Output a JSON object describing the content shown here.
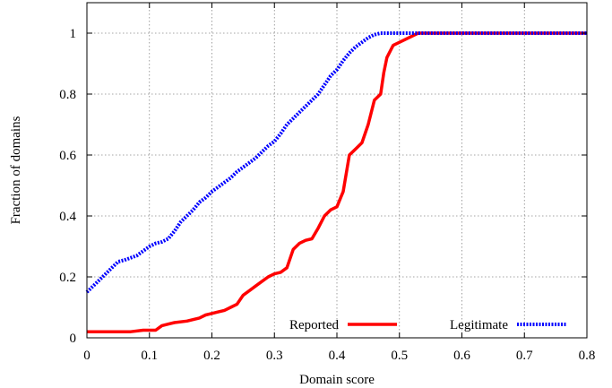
{
  "chart_data": {
    "type": "line",
    "title": "",
    "xlabel": "Domain score",
    "ylabel": "Fraction of domains",
    "xlim": [
      0,
      0.8
    ],
    "ylim": [
      0,
      1.1
    ],
    "xticks": [
      0,
      0.1,
      0.2,
      0.3,
      0.4,
      0.5,
      0.6,
      0.7,
      0.8
    ],
    "yticks": [
      0,
      0.2,
      0.4,
      0.6,
      0.8,
      1
    ],
    "xtick_labels": [
      "0",
      "0.1",
      "0.2",
      "0.3",
      "0.4",
      "0.5",
      "0.6",
      "0.7",
      "0.8"
    ],
    "ytick_labels": [
      "0",
      "0.2",
      "0.4",
      "0.6",
      "0.8",
      "1"
    ],
    "grid": true,
    "legend_position": "bottom-right",
    "series": [
      {
        "name": "Reported",
        "color": "#ff0000",
        "style": "solid",
        "points": [
          [
            0.0,
            0.02
          ],
          [
            0.07,
            0.02
          ],
          [
            0.09,
            0.025
          ],
          [
            0.11,
            0.025
          ],
          [
            0.12,
            0.04
          ],
          [
            0.13,
            0.045
          ],
          [
            0.14,
            0.05
          ],
          [
            0.16,
            0.055
          ],
          [
            0.18,
            0.065
          ],
          [
            0.19,
            0.075
          ],
          [
            0.2,
            0.08
          ],
          [
            0.21,
            0.085
          ],
          [
            0.22,
            0.09
          ],
          [
            0.23,
            0.1
          ],
          [
            0.24,
            0.11
          ],
          [
            0.25,
            0.14
          ],
          [
            0.26,
            0.155
          ],
          [
            0.27,
            0.17
          ],
          [
            0.28,
            0.185
          ],
          [
            0.29,
            0.2
          ],
          [
            0.3,
            0.21
          ],
          [
            0.31,
            0.215
          ],
          [
            0.32,
            0.23
          ],
          [
            0.33,
            0.29
          ],
          [
            0.34,
            0.31
          ],
          [
            0.35,
            0.32
          ],
          [
            0.36,
            0.325
          ],
          [
            0.37,
            0.36
          ],
          [
            0.38,
            0.4
          ],
          [
            0.39,
            0.42
          ],
          [
            0.4,
            0.43
          ],
          [
            0.41,
            0.48
          ],
          [
            0.42,
            0.6
          ],
          [
            0.43,
            0.62
          ],
          [
            0.44,
            0.64
          ],
          [
            0.45,
            0.7
          ],
          [
            0.46,
            0.78
          ],
          [
            0.47,
            0.8
          ],
          [
            0.475,
            0.87
          ],
          [
            0.48,
            0.92
          ],
          [
            0.49,
            0.96
          ],
          [
            0.5,
            0.97
          ],
          [
            0.51,
            0.98
          ],
          [
            0.52,
            0.99
          ],
          [
            0.53,
            1.0
          ],
          [
            0.8,
            1.0
          ]
        ]
      },
      {
        "name": "Legitimate",
        "color": "#0000ff",
        "style": "dotted",
        "points": [
          [
            0.0,
            0.15
          ],
          [
            0.02,
            0.19
          ],
          [
            0.04,
            0.23
          ],
          [
            0.05,
            0.25
          ],
          [
            0.06,
            0.255
          ],
          [
            0.08,
            0.27
          ],
          [
            0.09,
            0.285
          ],
          [
            0.1,
            0.3
          ],
          [
            0.11,
            0.31
          ],
          [
            0.12,
            0.315
          ],
          [
            0.13,
            0.325
          ],
          [
            0.14,
            0.35
          ],
          [
            0.15,
            0.38
          ],
          [
            0.16,
            0.4
          ],
          [
            0.17,
            0.42
          ],
          [
            0.18,
            0.445
          ],
          [
            0.19,
            0.46
          ],
          [
            0.2,
            0.48
          ],
          [
            0.21,
            0.495
          ],
          [
            0.22,
            0.51
          ],
          [
            0.23,
            0.525
          ],
          [
            0.24,
            0.545
          ],
          [
            0.25,
            0.56
          ],
          [
            0.26,
            0.575
          ],
          [
            0.27,
            0.59
          ],
          [
            0.28,
            0.61
          ],
          [
            0.29,
            0.63
          ],
          [
            0.3,
            0.645
          ],
          [
            0.31,
            0.67
          ],
          [
            0.32,
            0.7
          ],
          [
            0.33,
            0.72
          ],
          [
            0.34,
            0.74
          ],
          [
            0.35,
            0.76
          ],
          [
            0.36,
            0.78
          ],
          [
            0.37,
            0.8
          ],
          [
            0.38,
            0.83
          ],
          [
            0.39,
            0.86
          ],
          [
            0.4,
            0.88
          ],
          [
            0.41,
            0.91
          ],
          [
            0.42,
            0.935
          ],
          [
            0.43,
            0.955
          ],
          [
            0.44,
            0.97
          ],
          [
            0.45,
            0.985
          ],
          [
            0.46,
            0.995
          ],
          [
            0.47,
            1.0
          ],
          [
            0.8,
            1.0
          ]
        ]
      }
    ]
  }
}
